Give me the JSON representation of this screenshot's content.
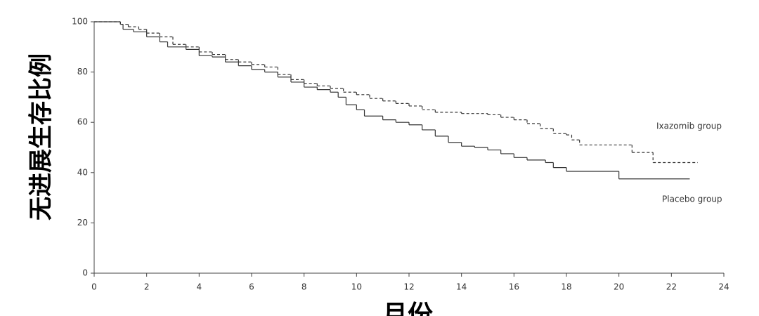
{
  "chart_data": {
    "type": "step",
    "x_label": "月份",
    "y_label": "无进展生存比例",
    "xlim": [
      0,
      24
    ],
    "ylim": [
      0,
      100
    ],
    "xticks": [
      0,
      2,
      4,
      6,
      8,
      10,
      12,
      14,
      16,
      18,
      20,
      22,
      24
    ],
    "yticks": [
      0,
      20,
      40,
      60,
      80,
      100
    ],
    "grid": false,
    "series": [
      {
        "name": "Ixazomib group",
        "color": "#333333",
        "dashed": true,
        "x": [
          0,
          1,
          1.3,
          1.7,
          2,
          2.5,
          3,
          3.5,
          4,
          4.5,
          5,
          5.5,
          6,
          6.5,
          7,
          7.5,
          8,
          8.5,
          9,
          9.5,
          10,
          10.5,
          11,
          11.5,
          12,
          12.5,
          13,
          14,
          15,
          15.5,
          16,
          16.5,
          17,
          17.5,
          18,
          18.2,
          18.5,
          20.5,
          21.3,
          23
        ],
        "values": [
          100,
          99,
          98,
          97,
          95.5,
          94,
          91,
          90,
          88,
          87,
          85,
          84,
          83,
          82,
          79,
          77,
          75.5,
          74.5,
          73.5,
          72,
          71,
          69.5,
          68.5,
          67.5,
          66.5,
          65,
          64,
          63.5,
          63,
          62,
          61,
          59.5,
          57.5,
          55.5,
          55,
          53,
          51,
          48,
          44,
          44
        ]
      },
      {
        "name": "Placebo group",
        "color": "#333333",
        "dashed": false,
        "x": [
          0,
          1,
          1.1,
          1.5,
          2,
          2.5,
          2.8,
          3.5,
          4,
          4.5,
          5,
          5.5,
          6,
          6.5,
          7,
          7.5,
          8,
          8.5,
          9,
          9.3,
          9.6,
          10,
          10.3,
          11,
          11.5,
          12,
          12.5,
          13,
          13.5,
          14,
          14.5,
          15,
          15.5,
          16,
          16.5,
          17.2,
          17.5,
          18,
          20,
          22.7
        ],
        "values": [
          100,
          99,
          97,
          96,
          94,
          92,
          90,
          89,
          86.5,
          86,
          84,
          82.5,
          81,
          80,
          78,
          76,
          74,
          73,
          72,
          70,
          67,
          65,
          62.5,
          61,
          60,
          59,
          57,
          54.5,
          52,
          50.5,
          50,
          49,
          47.5,
          46,
          45,
          44,
          42,
          40.5,
          37.5,
          37.5
        ]
      }
    ]
  }
}
